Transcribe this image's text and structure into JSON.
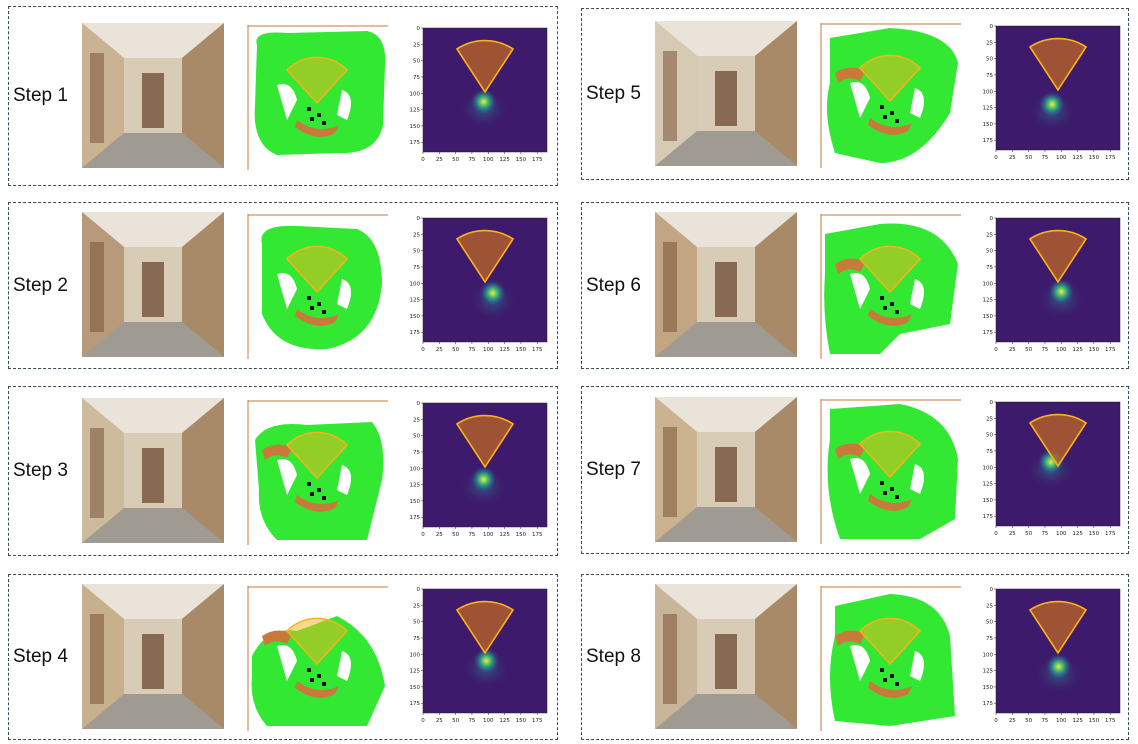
{
  "steps": [
    {
      "label": "Step 1"
    },
    {
      "label": "Step 2"
    },
    {
      "label": "Step 3"
    },
    {
      "label": "Step 4"
    },
    {
      "label": "Step 5"
    },
    {
      "label": "Step 6"
    },
    {
      "label": "Step 7"
    },
    {
      "label": "Step 8"
    }
  ],
  "heatmap_axis": {
    "x_ticks": [
      "0",
      "25",
      "50",
      "75",
      "100",
      "125",
      "150",
      "175"
    ],
    "y_ticks": [
      "0",
      "25",
      "50",
      "75",
      "100",
      "125",
      "150",
      "175"
    ]
  },
  "colors": {
    "free_space": "#33e833",
    "obstacle": "#c97a3a",
    "fov_sector": "#f4b31c",
    "heatmap_bg": "#3d1a6b",
    "panel_border": "#3a4a63"
  }
}
